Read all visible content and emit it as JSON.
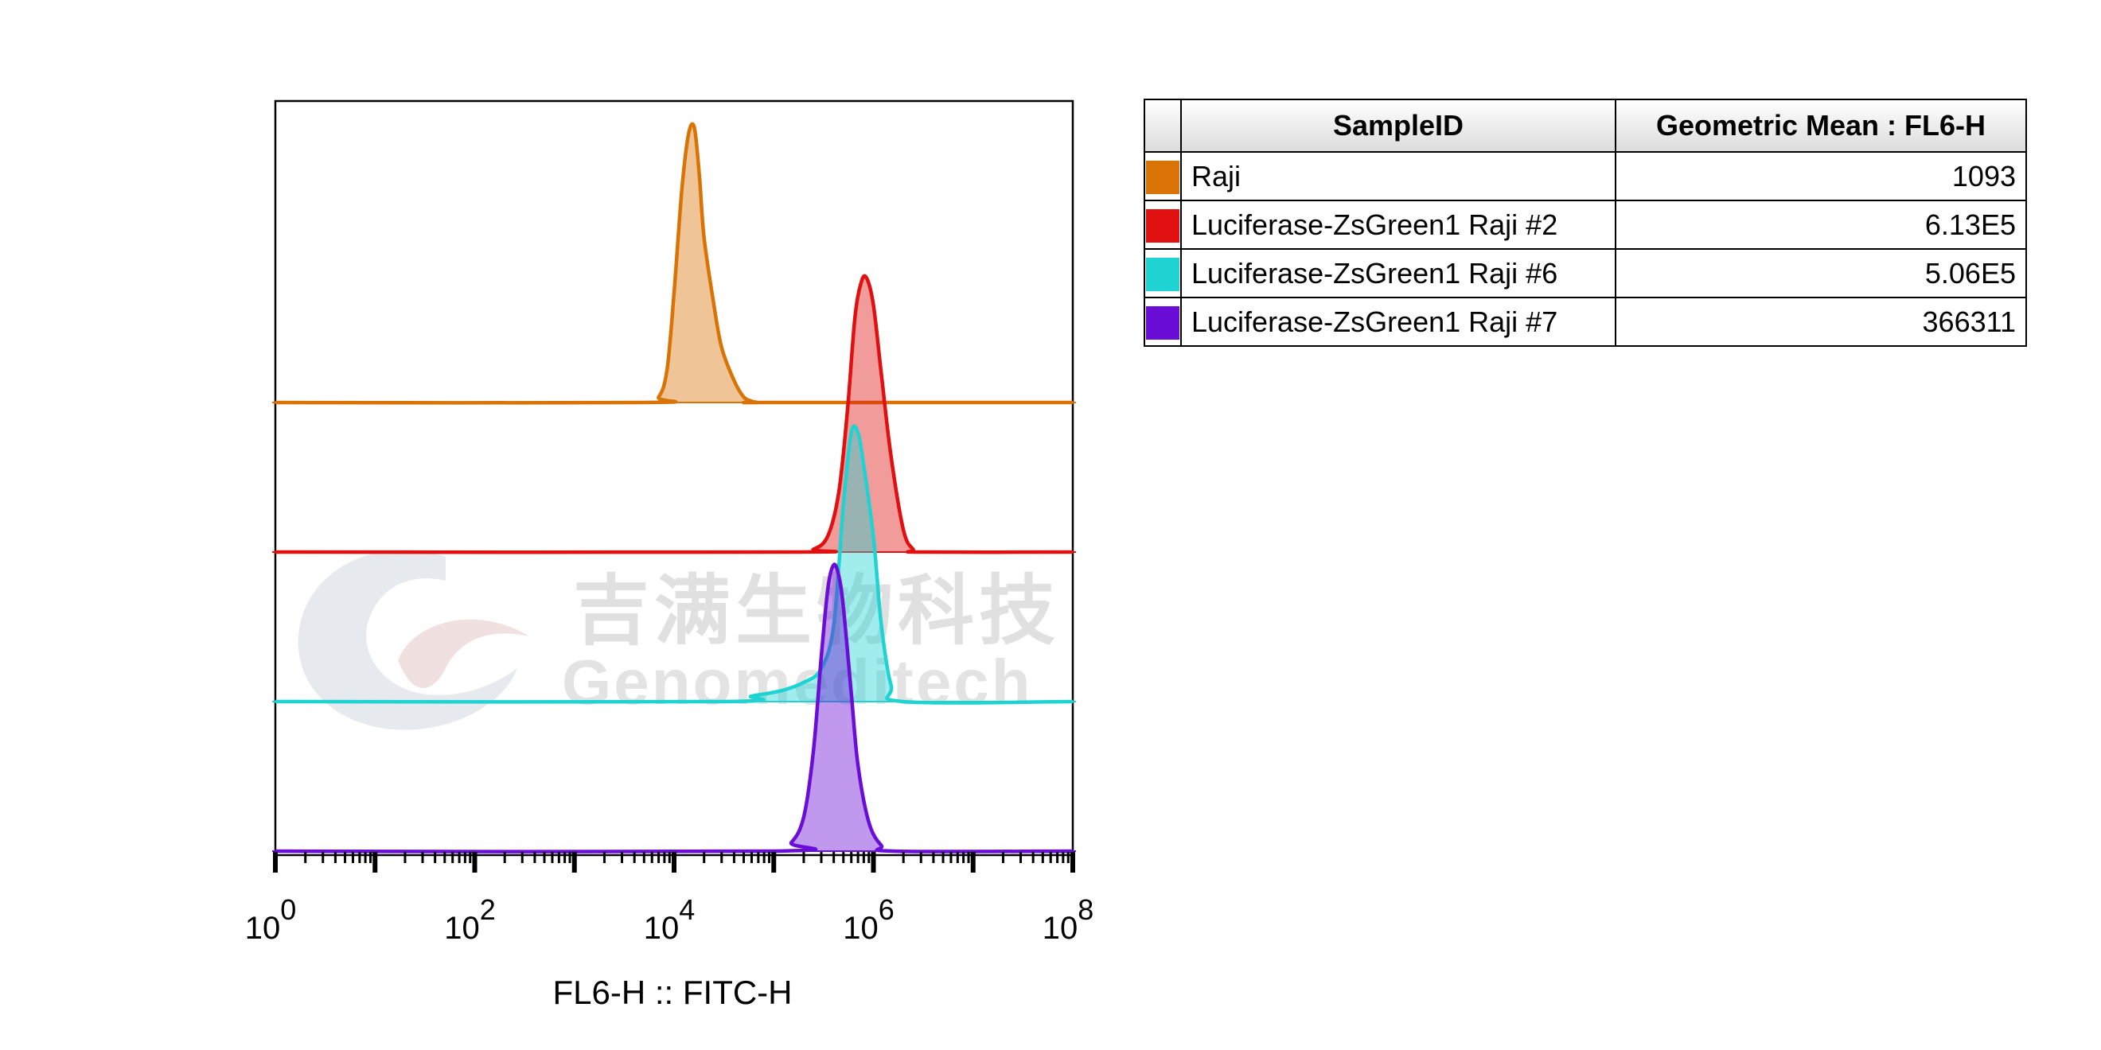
{
  "chart_data": {
    "type": "area",
    "xlabel": "FL6-H :: FITC-H",
    "xscale": "log",
    "xlim": [
      1,
      100000000
    ],
    "ticks": [
      {
        "base": "10",
        "exp": "0",
        "value": 1
      },
      {
        "base": "10",
        "exp": "2",
        "value": 100
      },
      {
        "base": "10",
        "exp": "4",
        "value": 10000
      },
      {
        "base": "10",
        "exp": "6",
        "value": 1000000
      },
      {
        "base": "10",
        "exp": "8",
        "value": 100000000
      }
    ],
    "layout": "offset-overlay",
    "series": [
      {
        "name": "Raji",
        "color": "#d97306",
        "x": [
          1,
          5000,
          7000,
          8500,
          10000,
          12000,
          14000,
          16000,
          18000,
          20000,
          25000,
          30000,
          40000,
          50000,
          60000,
          70000,
          90000,
          100000000
        ],
        "y": [
          0,
          0,
          0.02,
          0.12,
          0.4,
          0.78,
          0.98,
          1.0,
          0.82,
          0.6,
          0.36,
          0.2,
          0.08,
          0.02,
          0.005,
          0,
          0,
          0
        ]
      },
      {
        "name": "Luciferase-ZsGreen1 Raji #2",
        "color": "#e01010",
        "x": [
          1,
          150000,
          250000,
          350000,
          450000,
          550000,
          650000,
          750000,
          850000,
          1000000,
          1200000,
          1500000,
          2000000,
          2500000,
          3000000,
          100000000
        ],
        "y": [
          0,
          0,
          0.01,
          0.06,
          0.22,
          0.52,
          0.85,
          0.98,
          1.0,
          0.9,
          0.65,
          0.35,
          0.08,
          0.01,
          0,
          0
        ]
      },
      {
        "name": "Luciferase-ZsGreen1 Raji #6",
        "color": "#1fd3d3",
        "x": [
          1,
          30000,
          60000,
          120000,
          200000,
          300000,
          400000,
          500000,
          600000,
          700000,
          800000,
          1000000,
          1200000,
          1500000,
          2000000,
          100000000
        ],
        "y": [
          0,
          0,
          0.02,
          0.04,
          0.07,
          0.12,
          0.28,
          0.72,
          0.98,
          0.98,
          0.86,
          0.6,
          0.28,
          0.06,
          0,
          0
        ]
      },
      {
        "name": "Luciferase-ZsGreen1 Raji #7",
        "color": "#6a0dd6",
        "x": [
          1,
          100000,
          150000,
          200000,
          250000,
          300000,
          350000,
          400000,
          450000,
          500000,
          600000,
          700000,
          900000,
          1200000,
          1600000,
          100000000
        ],
        "y": [
          0,
          0,
          0.03,
          0.12,
          0.35,
          0.68,
          0.92,
          1.0,
          0.96,
          0.85,
          0.55,
          0.3,
          0.1,
          0.02,
          0,
          0
        ]
      }
    ]
  },
  "table": {
    "headers": {
      "sample": "SampleID",
      "value": "Geometric Mean : FL6-H"
    },
    "rows": [
      {
        "color": "#d97306",
        "sample": "Raji",
        "value": "1093"
      },
      {
        "color": "#e01010",
        "sample": "Luciferase-ZsGreen1 Raji #2",
        "value": "6.13E5"
      },
      {
        "color": "#1fd3d3",
        "sample": "Luciferase-ZsGreen1 Raji #6",
        "value": "5.06E5"
      },
      {
        "color": "#6a0dd6",
        "sample": "Luciferase-ZsGreen1 Raji #7",
        "value": "366311"
      }
    ]
  },
  "watermark": {
    "chinese": "吉满生物科技",
    "english": "Genomeditech"
  }
}
